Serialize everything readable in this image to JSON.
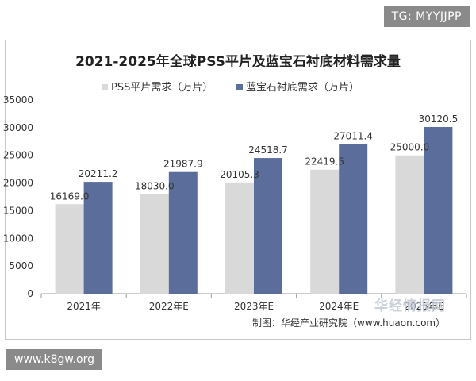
{
  "watermarks": {
    "top": "TG: MYYJJPP",
    "bottom": "www.k8gw.org",
    "logo": "华经情报网"
  },
  "source_text": "制图：华经产业研究院（www.huaon.com）",
  "colors": {
    "pss": "#d9d9d9",
    "sapphire": "#5b6d9b",
    "axis": "#999999",
    "text": "#333333"
  },
  "chart_data": {
    "type": "bar",
    "title": "2021-2025年全球PSS平片及蓝宝石衬底材料需求量",
    "categories": [
      "2021年",
      "2022年E",
      "2023年E",
      "2024年E",
      "2025年E"
    ],
    "series": [
      {
        "name": "PSS平片需求（万片）",
        "values": [
          16169.0,
          18030.0,
          20105.3,
          22419.5,
          25000.0
        ],
        "color": "#d9d9d9"
      },
      {
        "name": "蓝宝石衬底需求（万片）",
        "values": [
          20211.2,
          21987.9,
          24518.7,
          27011.4,
          30120.5
        ],
        "color": "#5b6d9b"
      }
    ],
    "value_labels": [
      [
        "16169.0",
        "18030.0",
        "20105.3",
        "22419.5",
        "25000.0"
      ],
      [
        "20211.2",
        "21987.9",
        "24518.7",
        "27011.4",
        "30120.5"
      ]
    ],
    "yticks": [
      "0",
      "5000",
      "10000",
      "15000",
      "20000",
      "25000",
      "30000",
      "35000"
    ],
    "ylim": [
      0,
      35000
    ],
    "legend_position": "top",
    "grid": false
  }
}
